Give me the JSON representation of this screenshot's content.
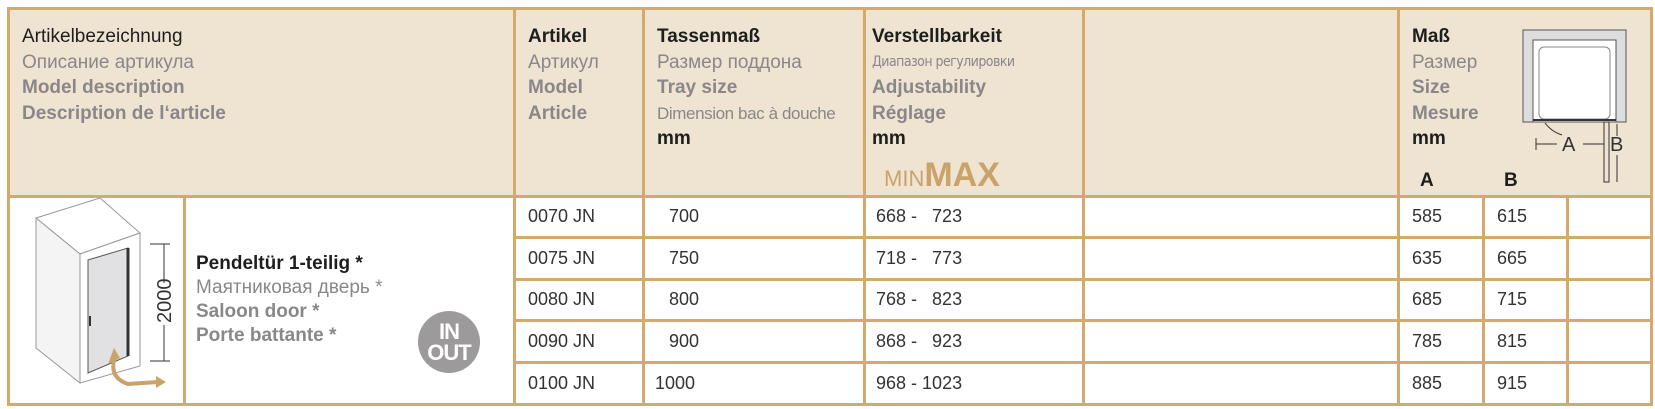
{
  "header": {
    "description": [
      "Artikelbezeichnung",
      "Описание артикула",
      "Model description",
      "Description de l‘article"
    ],
    "article": [
      "Artikel",
      "Артикул",
      "Model",
      "Article"
    ],
    "tray": [
      "Tassenmaß",
      "Размер поддона",
      "Tray size",
      "Dimension bac à douche",
      "mm"
    ],
    "adjust": [
      "Verstellbarkeit",
      "Диапазон регулировки",
      "Adjustability",
      "Réglage",
      "mm"
    ],
    "minmax": {
      "min": "MIN",
      "max": "MAX"
    },
    "size": [
      "Maß",
      "Размер",
      "Size",
      "Mesure",
      "mm"
    ],
    "col_a": "A",
    "col_b": "B",
    "diagram_labels": {
      "a": "A",
      "b": "B"
    }
  },
  "product": {
    "names": [
      "Pendeltür 1-teilig *",
      "Маятниковая дверь *",
      "Saloon door *",
      "Porte battante *"
    ],
    "height_label": "2000",
    "badge": {
      "in": "IN",
      "out": "OUT"
    }
  },
  "rows": [
    {
      "article": "0070 JN",
      "tray": "700",
      "adjust": "668 -   723",
      "a": "585",
      "b": "615"
    },
    {
      "article": "0075 JN",
      "tray": "750",
      "adjust": "718 -   773",
      "a": "635",
      "b": "665"
    },
    {
      "article": "0080 JN",
      "tray": "800",
      "adjust": "768 -   823",
      "a": "685",
      "b": "715"
    },
    {
      "article": "0090 JN",
      "tray": "900",
      "adjust": "868 -   923",
      "a": "785",
      "b": "815"
    },
    {
      "article": "0100 JN",
      "tray": "1000",
      "adjust": "968 - 1023",
      "a": "885",
      "b": "915"
    }
  ],
  "colors": {
    "border": "#d3aa6c",
    "header_bg": "#efe3d2",
    "accent": "#c9a36a",
    "badge": "#9c9a9b"
  }
}
